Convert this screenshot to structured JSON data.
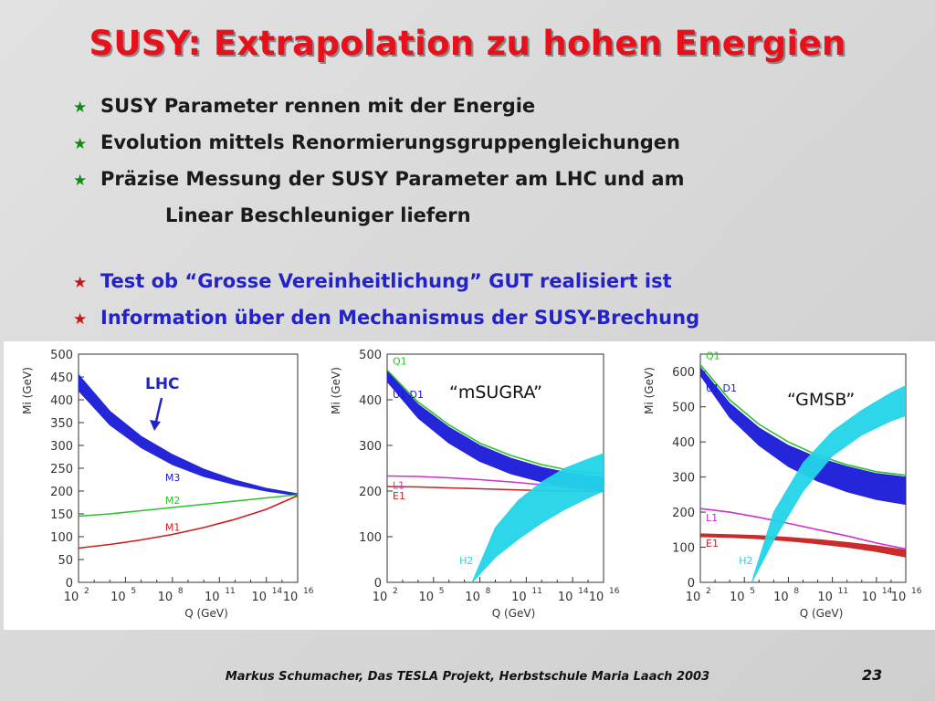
{
  "title": "SUSY: Extrapolation zu hohen Energien",
  "bullets": [
    {
      "text": "SUSY Parameter rennen mit der Energie",
      "style": "black"
    },
    {
      "text": "Evolution mittels Renormierungsgruppengleichungen",
      "style": "black"
    },
    {
      "text": "Präzise Messung der SUSY Parameter am LHC und am",
      "style": "black"
    },
    {
      "text": "Test ob “Grosse Vereinheitlichung” GUT realisiert ist",
      "style": "blue"
    },
    {
      "text": "Information über den Mechanismus der SUSY-Brechung",
      "style": "blue"
    }
  ],
  "bullet_continuation": "Linear Beschleuniger liefern",
  "bullet_symbol": "★",
  "colors": {
    "title": "#e8111b",
    "blue_text": "#2323c8",
    "band": "#1a1ad8",
    "green": "#2ec12e",
    "red": "#c82020",
    "magenta": "#cc33cc",
    "cyan": "#22d4e8"
  },
  "footer": "Markus Schumacher, Das TESLA Projekt, Herbstschule Maria Laach 2003",
  "page_number": "23",
  "chart_data": [
    {
      "type": "line",
      "annotation": "LHC",
      "xlabel": "Q (GeV)",
      "ylabel": "Mi (GeV)",
      "xscale": "log",
      "xlim": [
        100,
        1e+16
      ],
      "ylim": [
        0,
        500
      ],
      "yticks": [
        0,
        50,
        100,
        150,
        200,
        250,
        300,
        350,
        400,
        450,
        500
      ],
      "xticks": [
        "10^2",
        "10^5",
        "10^8",
        "10^11",
        "10^14",
        "10^16"
      ],
      "series": [
        {
          "name": "M3",
          "x_log10": [
            2,
            4,
            6,
            8,
            10,
            12,
            14,
            16
          ],
          "y_low": [
            420,
            345,
            295,
            258,
            232,
            214,
            200,
            190
          ],
          "y_high": [
            455,
            375,
            320,
            280,
            248,
            224,
            206,
            194
          ],
          "band": true,
          "color": "#1a1ad8"
        },
        {
          "name": "M2",
          "x_log10": [
            2,
            4,
            6,
            8,
            10,
            12,
            14,
            16
          ],
          "y": [
            145,
            150,
            157,
            164,
            171,
            178,
            185,
            192
          ],
          "color": "#2ec12e"
        },
        {
          "name": "M1",
          "x_log10": [
            2,
            4,
            6,
            8,
            10,
            12,
            14,
            16
          ],
          "y": [
            75,
            83,
            93,
            105,
            120,
            138,
            160,
            190
          ],
          "color": "#c82020"
        }
      ]
    },
    {
      "type": "line",
      "annotation": "“mSUGRA”",
      "xlabel": "Q (GeV)",
      "ylabel": "Mi (GeV)",
      "xscale": "log",
      "xlim": [
        100,
        1e+16
      ],
      "ylim": [
        0,
        500
      ],
      "yticks": [
        0,
        100,
        200,
        300,
        400,
        500
      ],
      "xticks": [
        "10^2",
        "10^5",
        "10^8",
        "10^11",
        "10^14",
        "10^16"
      ],
      "series": [
        {
          "name": "Q1",
          "x_log10": [
            2,
            4,
            6,
            8,
            10,
            12,
            14,
            16
          ],
          "y": [
            465,
            395,
            345,
            305,
            278,
            258,
            244,
            238
          ],
          "color": "#2ec12e"
        },
        {
          "name": "U1 D1",
          "x_log10": [
            2,
            4,
            6,
            8,
            10,
            12,
            14,
            16
          ],
          "y_low": [
            440,
            360,
            305,
            265,
            238,
            220,
            208,
            200
          ],
          "y_high": [
            462,
            390,
            340,
            300,
            272,
            252,
            238,
            230
          ],
          "band": true,
          "color": "#1a1ad8"
        },
        {
          "name": "L1",
          "x_log10": [
            2,
            4,
            6,
            8,
            10,
            12,
            14,
            16
          ],
          "y": [
            233,
            232,
            229,
            225,
            220,
            214,
            207,
            200
          ],
          "color": "#cc33cc"
        },
        {
          "name": "E1",
          "x_log10": [
            2,
            4,
            6,
            8,
            10,
            12,
            14,
            16
          ],
          "y": [
            210,
            209,
            207,
            205,
            203,
            201,
            200,
            199
          ],
          "color": "#c82020"
        },
        {
          "name": "H2",
          "x_log10": [
            7.5,
            9,
            10.5,
            12,
            13.5,
            15,
            16
          ],
          "y_low": [
            0,
            55,
            95,
            130,
            160,
            185,
            200
          ],
          "y_high": [
            0,
            120,
            180,
            220,
            250,
            270,
            282
          ],
          "band": true,
          "color": "#22d4e8"
        }
      ]
    },
    {
      "type": "line",
      "annotation": "“GMSB”",
      "xlabel": "Q (GeV)",
      "ylabel": "Mi (GeV)",
      "xscale": "log",
      "xlim": [
        100,
        1e+16
      ],
      "ylim": [
        0,
        650
      ],
      "yticks": [
        0,
        100,
        200,
        300,
        400,
        500,
        600
      ],
      "xticks": [
        "10^2",
        "10^5",
        "10^8",
        "10^11",
        "10^14",
        "10^16"
      ],
      "series": [
        {
          "name": "Q1",
          "x_log10": [
            2,
            4,
            6,
            8,
            10,
            12,
            14,
            16
          ],
          "y": [
            620,
            520,
            450,
            400,
            362,
            335,
            315,
            305
          ],
          "color": "#2ec12e"
        },
        {
          "name": "U1 D1",
          "x_log10": [
            2,
            4,
            6,
            8,
            10,
            12,
            14,
            16
          ],
          "y_low": [
            590,
            470,
            390,
            330,
            288,
            258,
            236,
            222
          ],
          "y_high": [
            612,
            510,
            440,
            390,
            355,
            330,
            310,
            300
          ],
          "band": true,
          "color": "#1a1ad8"
        },
        {
          "name": "L1",
          "x_log10": [
            2,
            4,
            6,
            8,
            10,
            12,
            14,
            16
          ],
          "y": [
            210,
            200,
            185,
            168,
            150,
            132,
            112,
            95
          ],
          "color": "#cc33cc"
        },
        {
          "name": "E1",
          "x_log10": [
            2,
            4,
            6,
            8,
            10,
            12,
            14,
            16
          ],
          "y_low": [
            130,
            128,
            124,
            118,
            110,
            100,
            88,
            72
          ],
          "y_high": [
            138,
            136,
            133,
            128,
            122,
            114,
            104,
            92
          ],
          "band": true,
          "color": "#c82020"
        },
        {
          "name": "H2",
          "x_log10": [
            5.5,
            7,
            9,
            11,
            13,
            15,
            16
          ],
          "y_low": [
            0,
            120,
            260,
            360,
            420,
            460,
            475
          ],
          "y_high": [
            0,
            200,
            340,
            430,
            490,
            540,
            560
          ],
          "band": true,
          "color": "#22d4e8"
        }
      ]
    }
  ]
}
